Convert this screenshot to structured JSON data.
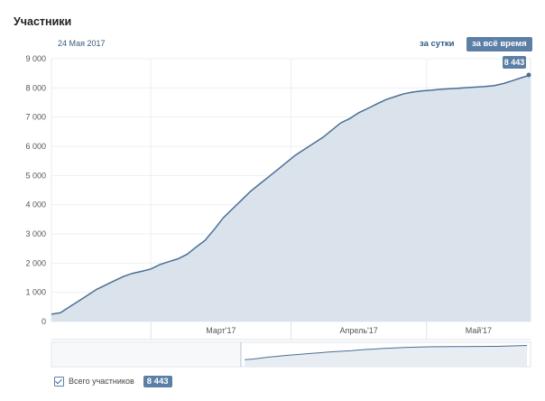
{
  "header": {
    "title": "Участники",
    "date": "24 Мая 2017",
    "btn_day": "за сутки",
    "btn_all": "за всё время"
  },
  "legend": {
    "label": "Всего участников",
    "value": "8 443"
  },
  "colors": {
    "line": "#4a6f95",
    "area": "#dae2ec",
    "button": "#5b7fa6"
  },
  "chart_data": {
    "type": "area",
    "title": "",
    "xlabel": "",
    "ylabel": "",
    "ylim": [
      0,
      9000
    ],
    "yticks": [
      "0",
      "1 000",
      "2 000",
      "3 000",
      "4 000",
      "5 000",
      "6 000",
      "7 000",
      "8 000",
      "9 000"
    ],
    "xticks": [
      "Март'17",
      "Апрель'17",
      "Май'17"
    ],
    "x": [
      "2017-02-07",
      "2017-02-09",
      "2017-02-11",
      "2017-02-13",
      "2017-02-15",
      "2017-02-17",
      "2017-02-19",
      "2017-02-21",
      "2017-02-23",
      "2017-02-25",
      "2017-02-27",
      "2017-03-01",
      "2017-03-03",
      "2017-03-05",
      "2017-03-07",
      "2017-03-09",
      "2017-03-11",
      "2017-03-13",
      "2017-03-15",
      "2017-03-17",
      "2017-03-19",
      "2017-03-21",
      "2017-03-23",
      "2017-03-25",
      "2017-03-27",
      "2017-03-29",
      "2017-03-31",
      "2017-04-02",
      "2017-04-04",
      "2017-04-06",
      "2017-04-08",
      "2017-04-10",
      "2017-04-12",
      "2017-04-14",
      "2017-04-16",
      "2017-04-18",
      "2017-04-20",
      "2017-04-22",
      "2017-04-24",
      "2017-04-26",
      "2017-04-28",
      "2017-04-30",
      "2017-05-02",
      "2017-05-04",
      "2017-05-06",
      "2017-05-08",
      "2017-05-10",
      "2017-05-12",
      "2017-05-14",
      "2017-05-16",
      "2017-05-18",
      "2017-05-20",
      "2017-05-22",
      "2017-05-24"
    ],
    "series": [
      {
        "values": [
          250,
          300,
          500,
          700,
          900,
          1100,
          1250,
          1400,
          1550,
          1650,
          1720,
          1800,
          1950,
          2050,
          2150,
          2300,
          2550,
          2780,
          3150,
          3550,
          3850,
          4150,
          4450,
          4700,
          4950,
          5200,
          5450,
          5700,
          5900,
          6100,
          6300,
          6550,
          6800,
          6950,
          7150,
          7300,
          7450,
          7600,
          7700,
          7800,
          7860,
          7900,
          7920,
          7950,
          7970,
          7990,
          8010,
          8030,
          8050,
          8080,
          8150,
          8250,
          8350,
          8443
        ]
      }
    ],
    "end_label": "8 443",
    "grid": true,
    "legend_position": "bottom-left"
  }
}
